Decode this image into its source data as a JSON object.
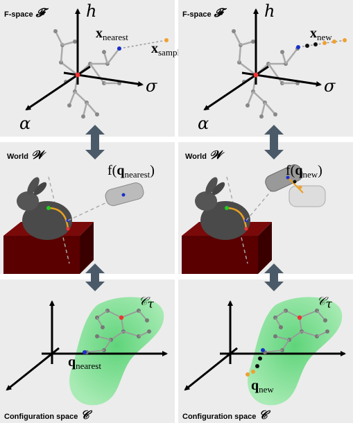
{
  "panels": [
    {
      "fspace": {
        "title": "F-space",
        "symbol": "𝓕",
        "h": "h",
        "sigma": "σ",
        "alpha": "α",
        "labels": [
          {
            "main": "x",
            "sub": "nearest"
          },
          {
            "main": "x",
            "sub": "sample"
          }
        ]
      },
      "world": {
        "title": "World",
        "symbol": "𝒲",
        "label": {
          "prefix": "f(",
          "main": "q",
          "sub": "nearest",
          "suffix": ")"
        }
      },
      "config": {
        "title": "Configuration space",
        "symbol": "𝒞",
        "region": {
          "main": "𝒞",
          "sub": "τ"
        },
        "label": {
          "main": "q",
          "sub": "nearest"
        }
      }
    },
    {
      "fspace": {
        "title": "F-space",
        "symbol": "𝓕",
        "h": "h",
        "sigma": "σ",
        "alpha": "α",
        "labels": [
          {
            "main": "x",
            "sub": "new"
          }
        ]
      },
      "world": {
        "title": "World",
        "symbol": "𝒲",
        "label": {
          "prefix": "f(",
          "main": "q",
          "sub": "new",
          "suffix": ")"
        }
      },
      "config": {
        "title": "Configuration space",
        "symbol": "𝒞",
        "region": {
          "main": "𝒞",
          "sub": "τ"
        },
        "label": {
          "main": "q",
          "sub": "new"
        }
      }
    }
  ]
}
